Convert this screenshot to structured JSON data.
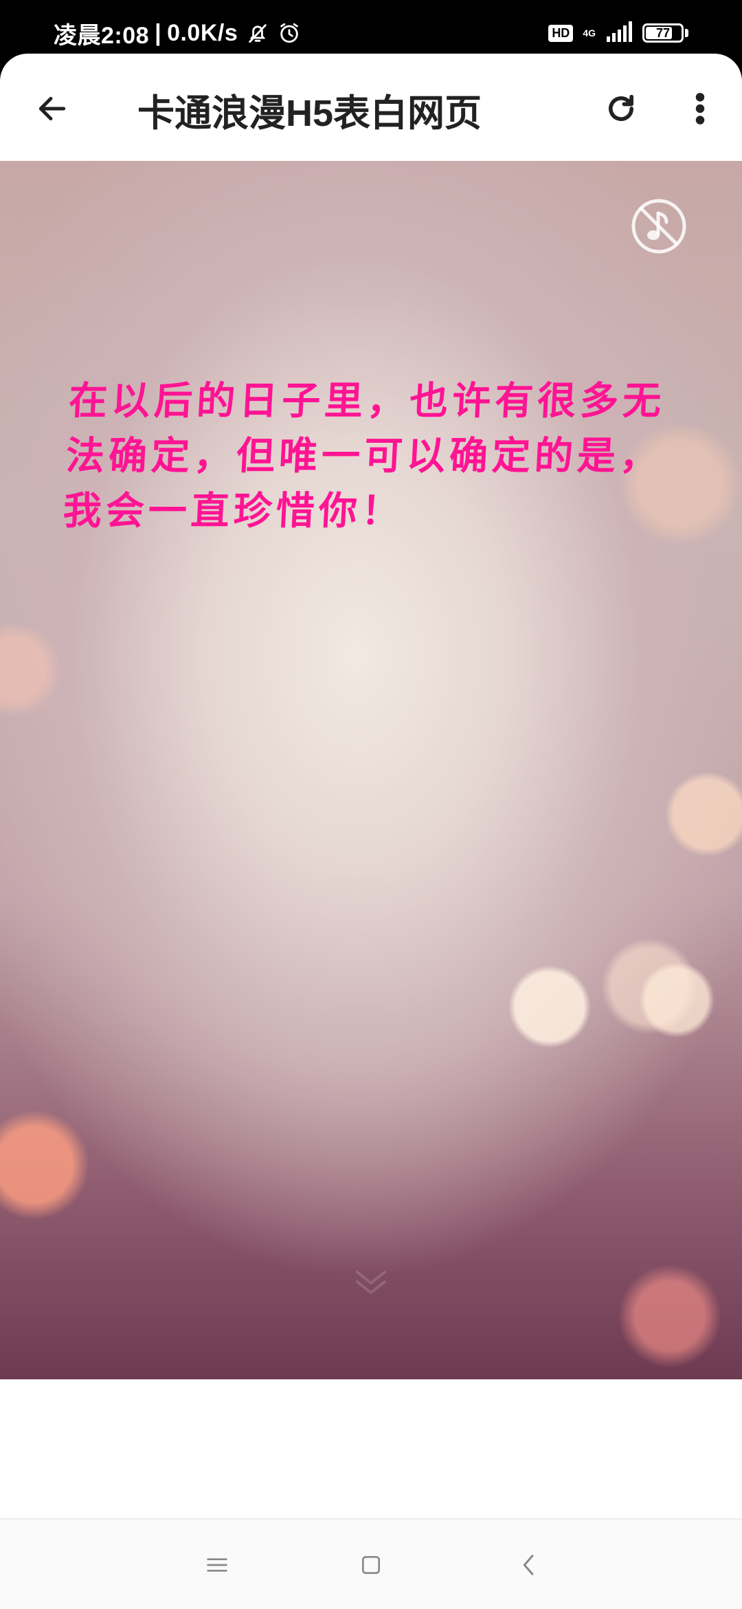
{
  "status_bar": {
    "time": "凌晨2:08",
    "separator": "|",
    "net_speed": "0.0K/s",
    "hd_label": "HD",
    "network_type": "4G",
    "battery_level": "77",
    "battery_fraction": 0.77,
    "icons": [
      "bell-off-icon",
      "alarm-icon",
      "signal-icon",
      "battery-icon"
    ]
  },
  "app_bar": {
    "title": "卡通浪漫H5表白网页",
    "icons": [
      "back-arrow-icon",
      "refresh-icon",
      "more-vert-icon"
    ]
  },
  "page": {
    "message": "在以后的日子里，也许有很多无法确定，但唯一可以确定的是，我会一直珍惜你！",
    "music_icon": "music-off-icon",
    "text_color": "#ff1493"
  },
  "nav_bar": {
    "icons": [
      "menu-icon",
      "home-icon",
      "back-icon"
    ]
  }
}
